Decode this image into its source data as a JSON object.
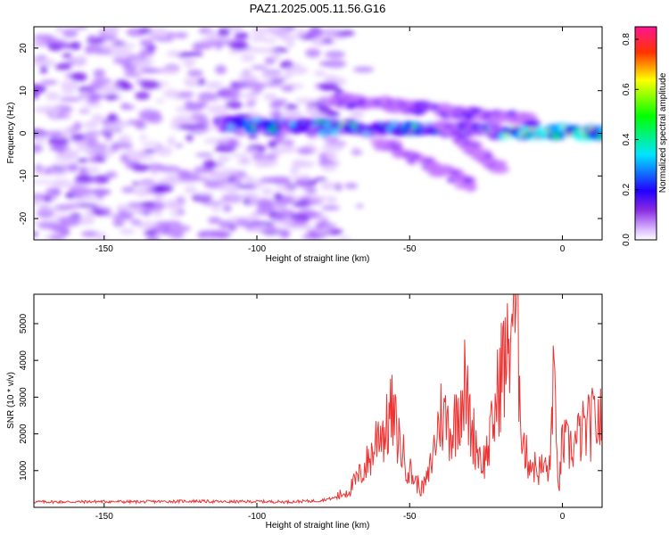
{
  "chart_data": [
    {
      "type": "heatmap",
      "title": "PAZ1.2025.005.11.56.G16",
      "xlabel": "Height of straight line (km)",
      "ylabel": "Frequency (Hz)",
      "xlim": [
        -173,
        13
      ],
      "ylim": [
        -25,
        25
      ],
      "xticks": [
        -150,
        -100,
        -50,
        0
      ],
      "yticks": [
        -20,
        -10,
        0,
        10,
        20
      ],
      "colorbar": {
        "label": "Normalized spectral amplitude",
        "range": [
          0.0,
          0.85
        ],
        "ticks": [
          0.0,
          0.2,
          0.4,
          0.6,
          0.8
        ],
        "colormap": [
          "#ffffff",
          "#c77dff",
          "#7a00ff",
          "#0000ff",
          "#00ffff",
          "#00ff00",
          "#ffff00",
          "#ff0000",
          "#ff1493"
        ]
      },
      "ridges": [
        {
          "x_start": -112,
          "x_end": 13,
          "y_start": 2,
          "y_end": 0,
          "amplitude": 0.55
        },
        {
          "x_start": -75,
          "x_end": -10,
          "y_start": 8,
          "y_end": 3,
          "amplitude": 0.3
        },
        {
          "x_start": -60,
          "x_end": -30,
          "y_start": -2,
          "y_end": -12,
          "amplitude": 0.25
        },
        {
          "x_start": -40,
          "x_end": -20,
          "y_start": 2,
          "y_end": -8,
          "amplitude": 0.25
        }
      ],
      "noise_region": {
        "x_start": -173,
        "x_end": -73,
        "y_min": -25,
        "y_max": 25,
        "amplitude": 0.15
      }
    },
    {
      "type": "line",
      "xlabel": "Height of straight line (km)",
      "ylabel": "SNR (10 * v/v)",
      "xlim": [
        -173,
        13
      ],
      "ylim": [
        0,
        5800
      ],
      "xticks": [
        -150,
        -100,
        -50,
        0
      ],
      "yticks": [
        1000,
        2000,
        3000,
        4000,
        5000
      ],
      "color": "#ee3333",
      "series": [
        {
          "x": [
            -173,
            -160,
            -150,
            -140,
            -130,
            -120,
            -110,
            -100,
            -90,
            -80,
            -75,
            -70,
            -66,
            -62,
            -60,
            -58,
            -56,
            -54,
            -52,
            -50,
            -48,
            -46,
            -44,
            -42,
            -40,
            -38,
            -36,
            -34,
            -32,
            -30,
            -28,
            -26,
            -24,
            -22,
            -20,
            -18,
            -16,
            -15,
            -14,
            -13,
            -12,
            -10,
            -8,
            -6,
            -4,
            -3,
            -2,
            -1,
            0,
            2,
            4,
            6,
            8,
            10,
            12,
            13
          ],
          "y": [
            150,
            150,
            160,
            150,
            160,
            170,
            150,
            160,
            150,
            180,
            250,
            450,
            900,
            1500,
            2200,
            2000,
            2600,
            2000,
            1400,
            1000,
            700,
            500,
            800,
            1600,
            2500,
            2400,
            2000,
            2800,
            3300,
            2200,
            1700,
            1200,
            1700,
            2600,
            3800,
            4000,
            5800,
            4800,
            3500,
            2000,
            1400,
            1200,
            1000,
            1100,
            1000,
            4100,
            1500,
            600,
            1800,
            1600,
            1700,
            2000,
            2100,
            2300,
            2400,
            2200
          ]
        }
      ]
    }
  ]
}
